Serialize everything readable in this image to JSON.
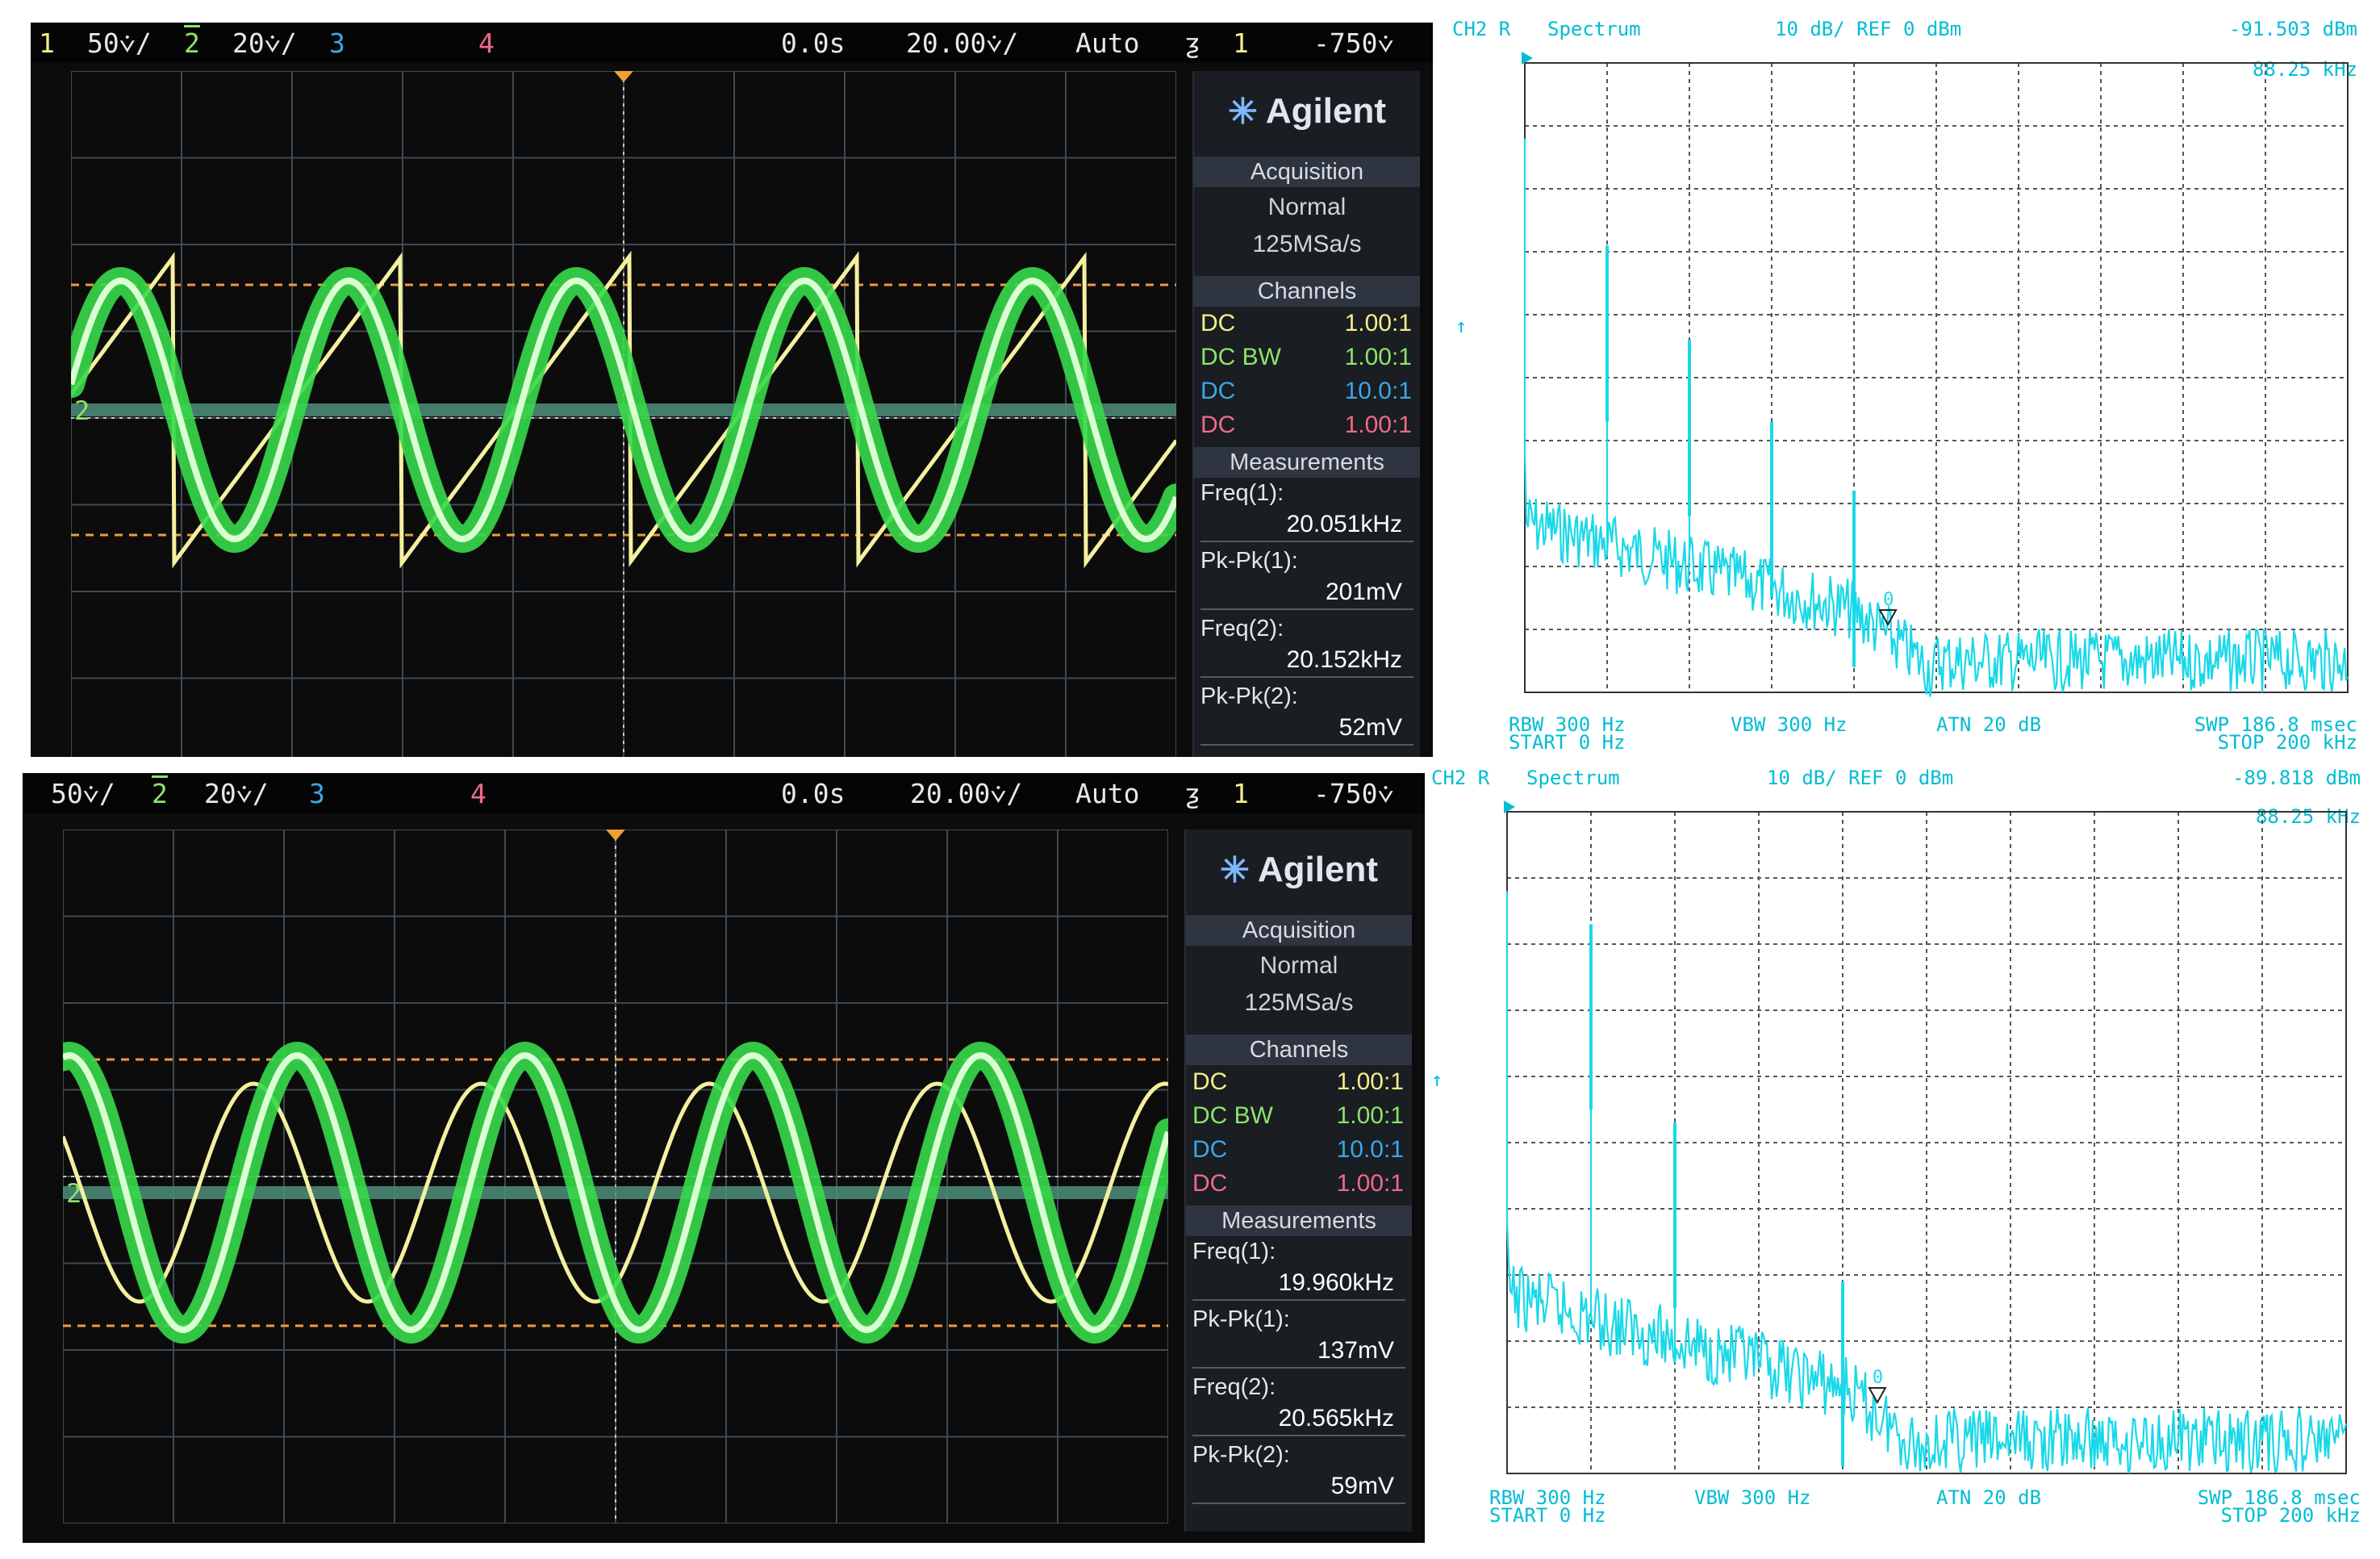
{
  "scopes": [
    {
      "ch1_scale": "50",
      "ch2_num": "2",
      "ch2_scale": "20",
      "ch3_num": "3",
      "ch4_num": "4",
      "time_offset": "0.0s",
      "time_scale": "20.00",
      "trigger_mode": "Auto",
      "trigger_src": "1",
      "trigger_level": "-750",
      "ch1_num": "1",
      "brand": "Agilent",
      "acq_title": "Acquisition",
      "acq_mode": "Normal",
      "acq_rate": "125MSa/s",
      "channels_title": "Channels",
      "channels": [
        {
          "coupling": "DC",
          "probe": "1.00:1",
          "color": "#f3ee8a"
        },
        {
          "coupling": "DC BW",
          "probe": "1.00:1",
          "color": "#8de36a"
        },
        {
          "coupling": "DC",
          "probe": "10.0:1",
          "color": "#3aa7e6"
        },
        {
          "coupling": "DC",
          "probe": "1.00:1",
          "color": "#f06a8a"
        }
      ],
      "meas_title": "Measurements",
      "measurements": [
        {
          "label": "Freq(1):",
          "value": "20.051kHz"
        },
        {
          "label": "Pk-Pk(1):",
          "value": "201mV"
        },
        {
          "label": "Freq(2):",
          "value": "20.152kHz"
        },
        {
          "label": "Pk-Pk(2):",
          "value": "52mV"
        }
      ],
      "ch1_waveform": "sawtooth",
      "ch2_waveform": "sine"
    },
    {
      "ch1_scale": "50",
      "ch2_num": "2",
      "ch2_scale": "20",
      "ch3_num": "3",
      "ch4_num": "4",
      "time_offset": "0.0s",
      "time_scale": "20.00",
      "trigger_mode": "Auto",
      "trigger_src": "1",
      "trigger_level": "-750",
      "ch1_num": "",
      "brand": "Agilent",
      "acq_title": "Acquisition",
      "acq_mode": "Normal",
      "acq_rate": "125MSa/s",
      "channels_title": "Channels",
      "channels": [
        {
          "coupling": "DC",
          "probe": "1.00:1",
          "color": "#f3ee8a"
        },
        {
          "coupling": "DC BW",
          "probe": "1.00:1",
          "color": "#8de36a"
        },
        {
          "coupling": "DC",
          "probe": "10.0:1",
          "color": "#3aa7e6"
        },
        {
          "coupling": "DC",
          "probe": "1.00:1",
          "color": "#f06a8a"
        }
      ],
      "meas_title": "Measurements",
      "measurements": [
        {
          "label": "Freq(1):",
          "value": "19.960kHz"
        },
        {
          "label": "Pk-Pk(1):",
          "value": "137mV"
        },
        {
          "label": "Freq(2):",
          "value": "20.565kHz"
        },
        {
          "label": "Pk-Pk(2):",
          "value": "59mV"
        }
      ],
      "ch1_waveform": "sine",
      "ch2_waveform": "sine"
    }
  ],
  "spectra": [
    {
      "channel": "CH2 R",
      "mode": "Spectrum",
      "scale": "10 dB/ REF 0 dBm",
      "marker_level": "-91.503 dBm",
      "marker_freq": "88.25 kHz",
      "rbw": "RBW  300 Hz",
      "vbw": "VBW 300 Hz",
      "atn": "ATN  20 dB",
      "swp": "SWP  186.8 msec",
      "start": "START  0 Hz",
      "stop": "STOP  200 kHz",
      "marker_num": "0",
      "peaks": [
        {
          "f": 20,
          "db": -29
        },
        {
          "f": 40,
          "db": -44
        },
        {
          "f": 60,
          "db": -57
        },
        {
          "f": 80,
          "db": -68
        }
      ],
      "floor_start_db": -70,
      "floor_end_db": -94
    },
    {
      "channel": "CH2 R",
      "mode": "Spectrum",
      "scale": "10 dB/ REF 0 dBm",
      "marker_level": "-89.818 dBm",
      "marker_freq": "88.25 kHz",
      "rbw": "RBW  300 Hz",
      "vbw": "VBW 300 Hz",
      "atn": "ATN  20 dB",
      "swp": "SWP  186.8 msec",
      "start": "START  0 Hz",
      "stop": "STOP  200 kHz",
      "marker_num": "0",
      "peaks": [
        {
          "f": 20,
          "db": -17
        },
        {
          "f": 40,
          "db": -47
        },
        {
          "f": 80,
          "db": -71
        }
      ],
      "floor_start_db": -70,
      "floor_end_db": -94
    }
  ]
}
